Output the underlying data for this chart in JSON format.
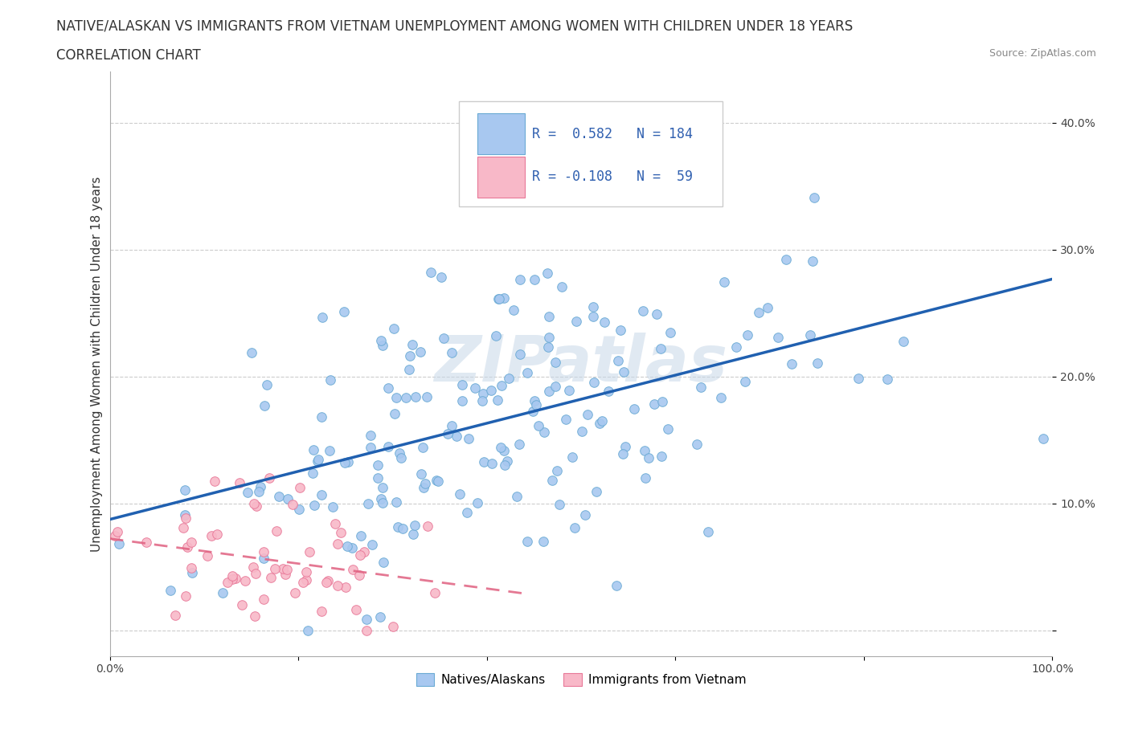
{
  "title_line1": "NATIVE/ALASKAN VS IMMIGRANTS FROM VIETNAM UNEMPLOYMENT AMONG WOMEN WITH CHILDREN UNDER 18 YEARS",
  "title_line2": "CORRELATION CHART",
  "source": "Source: ZipAtlas.com",
  "ylabel": "Unemployment Among Women with Children Under 18 years",
  "xlim": [
    0.0,
    1.0
  ],
  "ylim": [
    -0.02,
    0.44
  ],
  "xticks": [
    0.0,
    0.2,
    0.4,
    0.6,
    0.8,
    1.0
  ],
  "xtick_labels": [
    "0.0%",
    "",
    "",
    "",
    "",
    "100.0%"
  ],
  "ytick_positions": [
    0.0,
    0.1,
    0.2,
    0.3,
    0.4
  ],
  "ytick_labels": [
    "",
    "10.0%",
    "20.0%",
    "30.0%",
    "40.0%"
  ],
  "native_color": "#a8c8f0",
  "native_edge": "#6aaad4",
  "vietnam_color": "#f8b8c8",
  "vietnam_edge": "#e87898",
  "trend_native_color": "#2060b0",
  "trend_vietnam_color": "#e06080",
  "watermark": "ZIPatlas",
  "legend_box_native_color": "#a8c8f0",
  "legend_box_vietnam_color": "#f8b8c8",
  "R_native": 0.582,
  "N_native": 184,
  "R_vietnam": -0.108,
  "N_vietnam": 59,
  "native_label": "Natives/Alaskans",
  "vietnam_label": "Immigrants from Vietnam",
  "grid_color": "#cccccc",
  "background_color": "#ffffff",
  "title_fontsize": 12,
  "subtitle_fontsize": 12,
  "axis_label_fontsize": 11,
  "tick_fontsize": 10,
  "legend_fontsize": 12
}
